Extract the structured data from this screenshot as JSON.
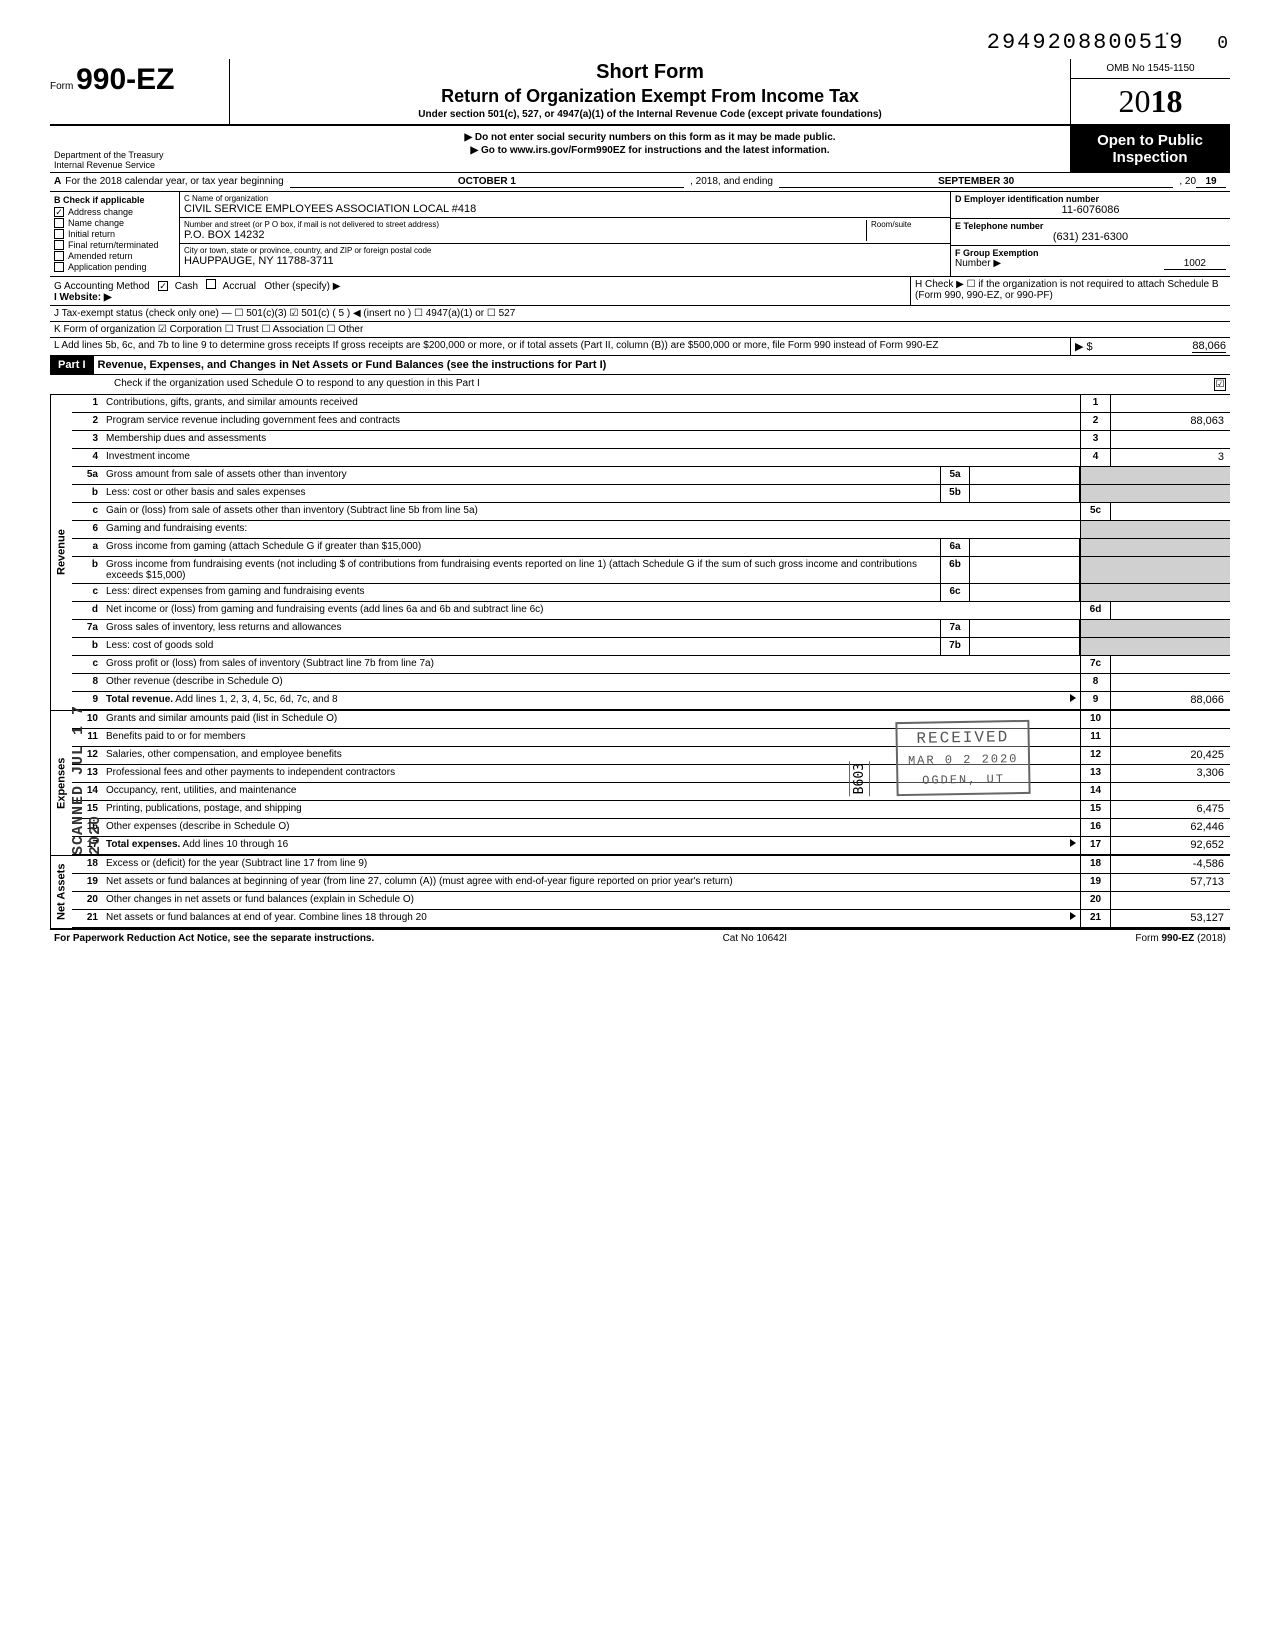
{
  "dln": "294920880051̇9",
  "dln_trail": "0",
  "omb": "OMB No 1545-1150",
  "form_prefix": "Form",
  "form_number": "990-EZ",
  "year_prefix": "20",
  "year_bold": "18",
  "header": {
    "short_form": "Short Form",
    "title": "Return of Organization Exempt From Income Tax",
    "subtitle": "Under section 501(c), 527, or 4947(a)(1) of the Internal Revenue Code (except private foundations)",
    "line1": "▶ Do not enter social security numbers on this form as it may be made public.",
    "line2": "▶ Go to www.irs.gov/Form990EZ for instructions and the latest information."
  },
  "dept1": "Department of the Treasury",
  "dept2": "Internal Revenue Service",
  "open_public": "Open to Public Inspection",
  "row_a": {
    "label": "A",
    "text": "For the 2018 calendar year, or tax year beginning",
    "begin": "OCTOBER 1",
    "mid": ", 2018, and ending",
    "end": "SEPTEMBER 30",
    "tail": ", 20",
    "yr": "19"
  },
  "b": {
    "header": "B Check if applicable",
    "items": [
      {
        "checked": true,
        "label": "Address change"
      },
      {
        "checked": false,
        "label": "Name change"
      },
      {
        "checked": false,
        "label": "Initial return"
      },
      {
        "checked": false,
        "label": "Final return/terminated"
      },
      {
        "checked": false,
        "label": "Amended return"
      },
      {
        "checked": false,
        "label": "Application pending"
      }
    ]
  },
  "c": {
    "name_label": "C Name of organization",
    "name": "CIVIL SERVICE EMPLOYEES ASSOCIATION LOCAL #418",
    "addr_label": "Number and street (or P O  box, if mail is not delivered to street address)",
    "room_label": "Room/suite",
    "addr": "P.O. BOX 14232",
    "city_label": "City or town, state or province, country, and ZIP or foreign postal code",
    "city": "HAUPPAUGE, NY 11788-3711"
  },
  "d": {
    "label": "D Employer identification number",
    "value": "11-6076086"
  },
  "e": {
    "label": "E Telephone number",
    "value": "(631) 231-6300"
  },
  "f": {
    "label": "F Group Exemption",
    "label2": "Number ▶",
    "value": "1002"
  },
  "g": {
    "label": "G Accounting Method",
    "cash": "Cash",
    "accrual": "Accrual",
    "other": "Other (specify) ▶"
  },
  "h": {
    "text": "H Check ▶ ☐ if the organization is not required to attach Schedule B (Form 990, 990-EZ, or 990-PF)"
  },
  "i": {
    "label": "I  Website: ▶"
  },
  "j": {
    "text": "J Tax-exempt status (check only one) — ☐ 501(c)(3)  ☑ 501(c) (   5   ) ◀ (insert no ) ☐ 4947(a)(1) or  ☐ 527"
  },
  "k": {
    "text": "K Form of organization   ☑ Corporation   ☐ Trust   ☐ Association   ☐ Other"
  },
  "l": {
    "text": "L Add lines 5b, 6c, and 7b to line 9 to determine gross receipts  If gross receipts are $200,000 or more, or if total assets (Part II, column (B)) are $500,000 or more, file Form 990 instead of Form 990-EZ",
    "arrow": "▶   $",
    "value": "88,066"
  },
  "part1": {
    "label": "Part I",
    "title": "Revenue, Expenses, and Changes in Net Assets or Fund Balances (see the instructions for Part I)",
    "check_o": "Check if the organization used Schedule O to respond to any question in this Part I",
    "check_o_box": "☑"
  },
  "lines": [
    {
      "n": "1",
      "desc": "Contributions, gifts, grants, and similar amounts received",
      "box": "1",
      "val": ""
    },
    {
      "n": "2",
      "desc": "Program service revenue including government fees and contracts",
      "box": "2",
      "val": "88,063"
    },
    {
      "n": "3",
      "desc": "Membership dues and assessments",
      "box": "3",
      "val": ""
    },
    {
      "n": "4",
      "desc": "Investment income",
      "box": "4",
      "val": "3"
    },
    {
      "n": "5a",
      "desc": "Gross amount from sale of assets other than inventory",
      "mid": "5a",
      "shaded": true
    },
    {
      "n": "b",
      "desc": "Less: cost or other basis and sales expenses",
      "mid": "5b",
      "shaded": true
    },
    {
      "n": "c",
      "desc": "Gain or (loss) from sale of assets other than inventory (Subtract line 5b from line 5a)",
      "box": "5c",
      "val": ""
    },
    {
      "n": "6",
      "desc": "Gaming and fundraising events:",
      "shaded": true,
      "noval": true
    },
    {
      "n": "a",
      "desc": "Gross income from gaming (attach Schedule G if greater than $15,000)",
      "mid": "6a",
      "shaded": true
    },
    {
      "n": "b",
      "desc": "Gross income from fundraising events (not including  $                     of contributions from fundraising events reported on line 1) (attach Schedule G if the sum of such gross income and contributions exceeds $15,000)",
      "mid": "6b",
      "shaded": true
    },
    {
      "n": "c",
      "desc": "Less: direct expenses from gaming and fundraising events",
      "mid": "6c",
      "shaded": true
    },
    {
      "n": "d",
      "desc": "Net income or (loss) from gaming and fundraising events (add lines 6a and 6b and subtract line 6c)",
      "box": "6d",
      "val": ""
    },
    {
      "n": "7a",
      "desc": "Gross sales of inventory, less returns and allowances",
      "mid": "7a",
      "shaded": true
    },
    {
      "n": "b",
      "desc": "Less: cost of goods sold",
      "mid": "7b",
      "shaded": true
    },
    {
      "n": "c",
      "desc": "Gross profit or (loss) from sales of inventory (Subtract line 7b from line 7a)",
      "box": "7c",
      "val": ""
    },
    {
      "n": "8",
      "desc": "Other revenue (describe in Schedule O)",
      "box": "8",
      "val": ""
    },
    {
      "n": "9",
      "desc": "Total revenue. Add lines 1, 2, 3, 4, 5c, 6d, 7c, and 8",
      "box": "9",
      "val": "88,066",
      "bold": true,
      "arrow": true
    }
  ],
  "exp_lines": [
    {
      "n": "10",
      "desc": "Grants and similar amounts paid (list in Schedule O)",
      "box": "10",
      "val": ""
    },
    {
      "n": "11",
      "desc": "Benefits paid to or for members",
      "box": "11",
      "val": ""
    },
    {
      "n": "12",
      "desc": "Salaries, other compensation, and employee benefits",
      "box": "12",
      "val": "20,425"
    },
    {
      "n": "13",
      "desc": "Professional fees and other payments to independent contractors",
      "box": "13",
      "val": "3,306"
    },
    {
      "n": "14",
      "desc": "Occupancy, rent, utilities, and maintenance",
      "box": "14",
      "val": ""
    },
    {
      "n": "15",
      "desc": "Printing, publications, postage, and shipping",
      "box": "15",
      "val": "6,475"
    },
    {
      "n": "16",
      "desc": "Other expenses (describe in Schedule O)",
      "box": "16",
      "val": "62,446"
    },
    {
      "n": "17",
      "desc": "Total expenses. Add lines 10 through 16",
      "box": "17",
      "val": "92,652",
      "bold": true,
      "arrow": true
    }
  ],
  "net_lines": [
    {
      "n": "18",
      "desc": "Excess or (deficit) for the year (Subtract line 17 from line 9)",
      "box": "18",
      "val": "-4,586"
    },
    {
      "n": "19",
      "desc": "Net assets or fund balances at beginning of year (from line 27, column (A)) (must agree with end-of-year figure reported on prior year's return)",
      "box": "19",
      "val": "57,713"
    },
    {
      "n": "20",
      "desc": "Other changes in net assets or fund balances (explain in Schedule O)",
      "box": "20",
      "val": ""
    },
    {
      "n": "21",
      "desc": "Net assets or fund balances at end of year. Combine lines 18 through 20",
      "box": "21",
      "val": "53,127",
      "arrow": true
    }
  ],
  "side_labels": {
    "revenue": "Revenue",
    "expenses": "Expenses",
    "netassets": "Net Assets"
  },
  "stamps": {
    "received": "RECEIVED",
    "date": "MAR 0 2 2020",
    "ogden": "OGDEN, UT",
    "b603": "B603",
    "scanned": "SCANNED JUL 1 7 2020"
  },
  "footer": {
    "left": "For Paperwork Reduction Act Notice, see the separate instructions.",
    "mid": "Cat No  10642I",
    "right": "Form 990-EZ (2018)"
  }
}
